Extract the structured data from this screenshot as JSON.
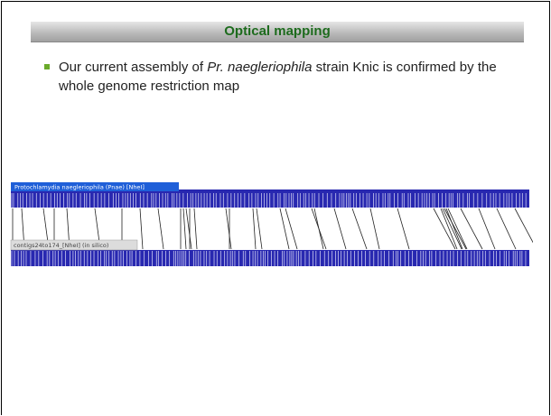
{
  "header": {
    "title": "Optical mapping"
  },
  "bullets": [
    {
      "segments": [
        {
          "text": "Our current assembly of "
        },
        {
          "text": "Pr. naegleriophila",
          "italic": true
        },
        {
          "text": " strain Knic is confirmed by the whole genome restriction map"
        }
      ]
    }
  ],
  "map": {
    "top_label": "Protochlamydia naegleriophila (Pnae) [NheI]",
    "bottom_label": "contigs24to174_[NheI] (in silico)"
  }
}
